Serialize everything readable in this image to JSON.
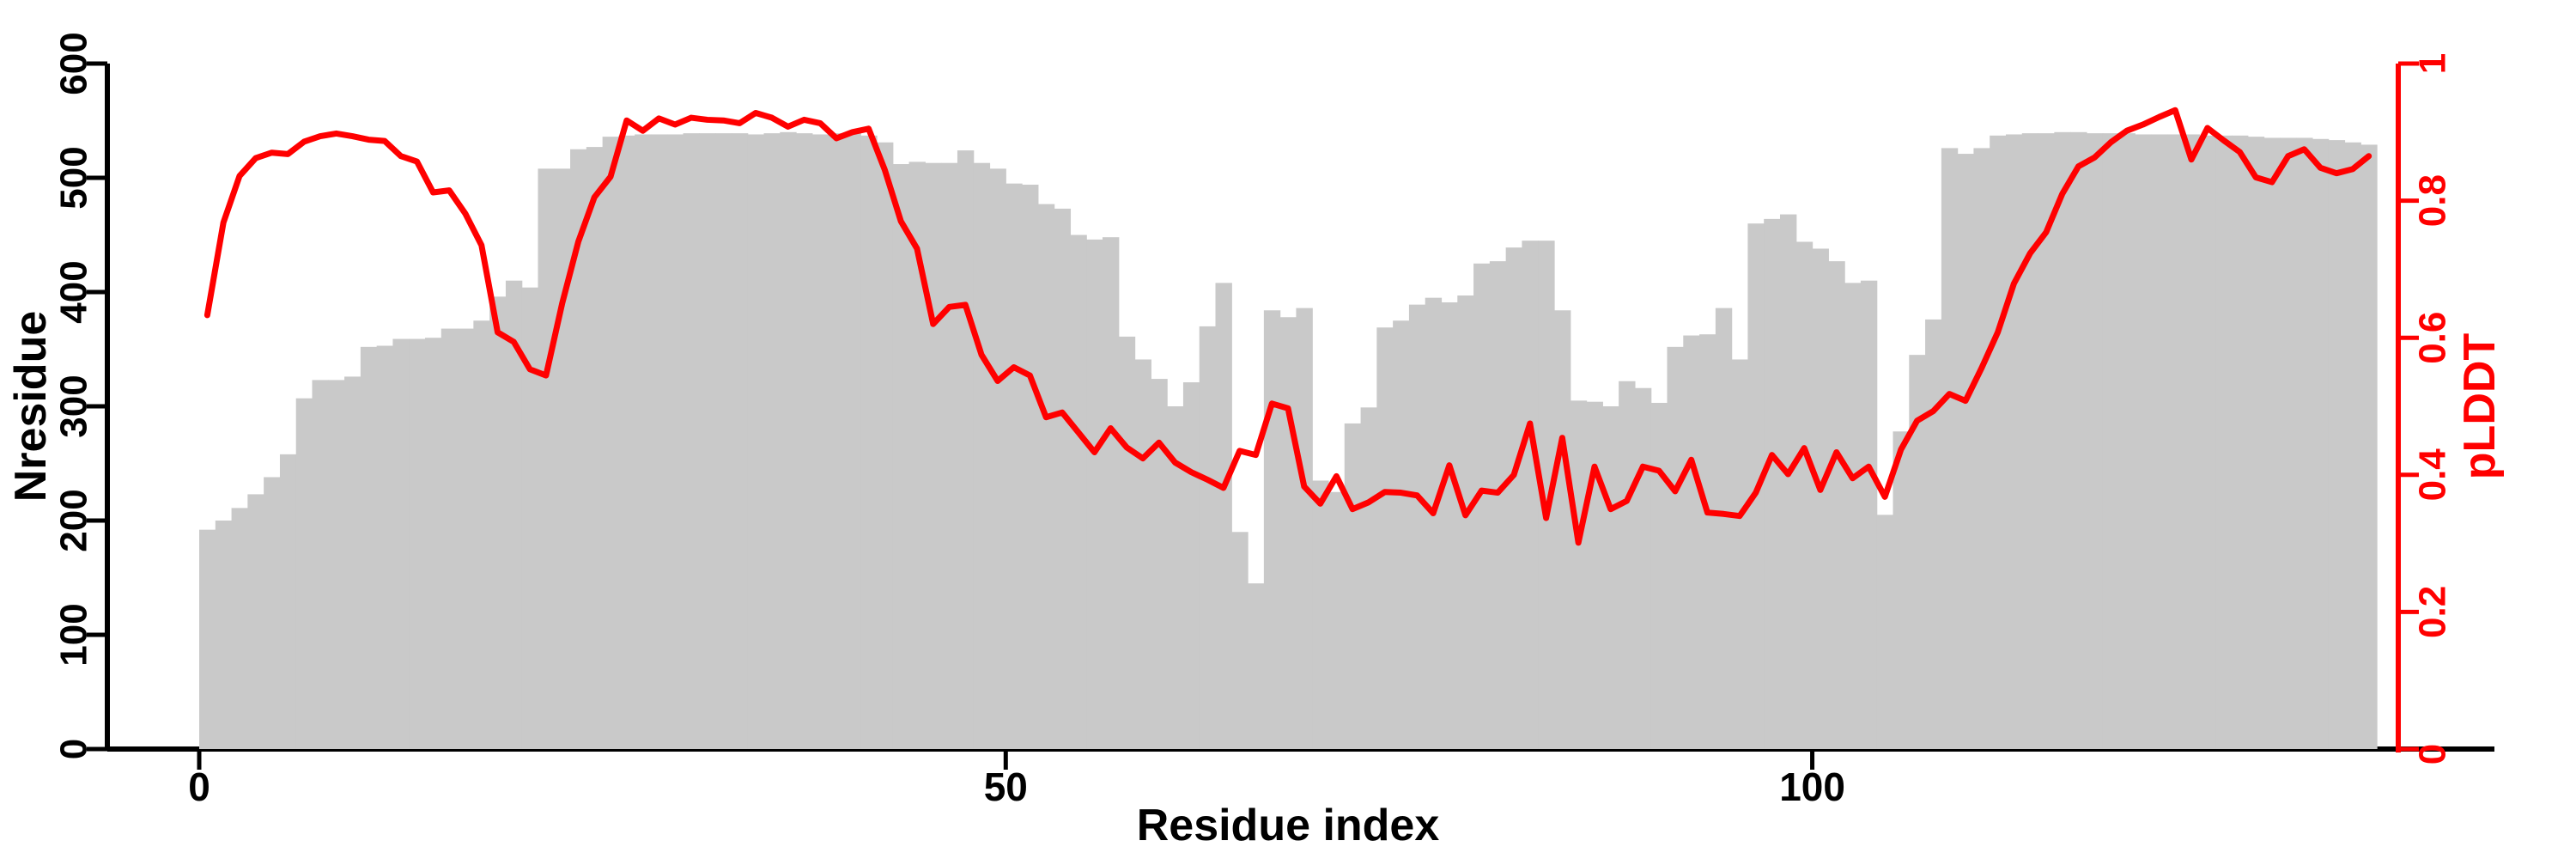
{
  "chart_data": {
    "type": "bar+line",
    "title": "",
    "xlabel": "Residue index",
    "ylabel_left": "Nresidue",
    "ylabel_right": "pLDDT",
    "x_unit": "residue index, bars span [i, i+1] for i = 0..134",
    "n_points": 135,
    "xlim": [
      0,
      135
    ],
    "ylim_left": [
      0,
      600
    ],
    "ylim_right": [
      0,
      1
    ],
    "xticks": [
      "0",
      "50",
      "100"
    ],
    "xtick_values": [
      0,
      50,
      100
    ],
    "yticks_left": [
      "0",
      "100",
      "200",
      "300",
      "400",
      "500",
      "600"
    ],
    "ytick_values_left": [
      0,
      100,
      200,
      300,
      400,
      500,
      600
    ],
    "yticks_right": [
      "0",
      "0.2",
      "0.4",
      "0.6",
      "0.8",
      "1"
    ],
    "ytick_values_right": [
      0,
      0.2,
      0.4,
      0.6,
      0.8,
      1
    ],
    "grid": false,
    "legend": "none",
    "colors": {
      "bar": "#c9c9c9",
      "line": "#ff0000",
      "left_axis": "#000000",
      "right_axis": "#ff0000",
      "background": "#ffffff"
    },
    "series": [
      {
        "name": "Nresidue",
        "type": "bar",
        "axis": "left",
        "color": "#c9c9c9",
        "values": [
          192,
          200,
          211,
          223,
          238,
          258,
          307,
          323,
          323,
          326,
          352,
          353,
          359,
          359,
          360,
          368,
          368,
          375,
          396,
          410,
          404,
          508,
          508,
          525,
          527,
          536,
          537,
          538,
          538,
          538,
          539,
          539,
          539,
          539,
          538,
          539,
          540,
          539,
          538,
          539,
          539,
          537,
          531,
          512,
          514,
          513,
          513,
          524,
          513,
          508,
          495,
          494,
          477,
          473,
          450,
          446,
          448,
          361,
          341,
          324,
          300,
          321,
          370,
          408,
          190,
          145,
          384,
          378,
          386,
          235,
          225,
          285,
          299,
          369,
          375,
          389,
          395,
          391,
          397,
          425,
          427,
          439,
          445,
          445,
          384,
          305,
          304,
          300,
          322,
          316,
          303,
          352,
          362,
          363,
          386,
          341,
          460,
          464,
          468,
          444,
          438,
          427,
          408,
          410,
          205,
          278,
          345,
          376,
          526,
          521,
          526,
          537,
          538,
          539,
          539,
          540,
          540,
          539,
          539,
          539,
          538,
          538,
          538,
          538,
          537,
          537,
          537,
          536,
          535,
          535,
          535,
          534,
          533,
          531,
          529
        ]
      },
      {
        "name": "pLDDT",
        "type": "line",
        "axis": "right",
        "color": "#ff0000",
        "values": [
          0.633,
          0.768,
          0.836,
          0.862,
          0.87,
          0.868,
          0.886,
          0.894,
          0.898,
          0.894,
          0.889,
          0.887,
          0.865,
          0.857,
          0.812,
          0.815,
          0.781,
          0.735,
          0.608,
          0.594,
          0.554,
          0.545,
          0.65,
          0.74,
          0.805,
          0.835,
          0.917,
          0.902,
          0.92,
          0.911,
          0.921,
          0.918,
          0.917,
          0.913,
          0.928,
          0.921,
          0.908,
          0.918,
          0.913,
          0.891,
          0.9,
          0.905,
          0.845,
          0.77,
          0.73,
          0.62,
          0.645,
          0.648,
          0.575,
          0.537,
          0.557,
          0.545,
          0.484,
          0.491,
          0.462,
          0.433,
          0.468,
          0.44,
          0.424,
          0.447,
          0.418,
          0.404,
          0.393,
          0.381,
          0.435,
          0.429,
          0.504,
          0.497,
          0.383,
          0.358,
          0.398,
          0.35,
          0.36,
          0.375,
          0.374,
          0.37,
          0.344,
          0.414,
          0.341,
          0.377,
          0.374,
          0.4,
          0.475,
          0.337,
          0.454,
          0.301,
          0.412,
          0.35,
          0.362,
          0.412,
          0.406,
          0.376,
          0.422,
          0.345,
          0.343,
          0.34,
          0.374,
          0.429,
          0.401,
          0.439,
          0.378,
          0.433,
          0.395,
          0.412,
          0.368,
          0.437,
          0.479,
          0.493,
          0.518,
          0.508,
          0.556,
          0.608,
          0.679,
          0.723,
          0.754,
          0.81,
          0.85,
          0.863,
          0.885,
          0.902,
          0.911,
          0.922,
          0.932,
          0.86,
          0.906,
          0.888,
          0.871,
          0.834,
          0.827,
          0.865,
          0.875,
          0.848,
          0.84,
          0.846,
          0.865
        ]
      }
    ]
  }
}
